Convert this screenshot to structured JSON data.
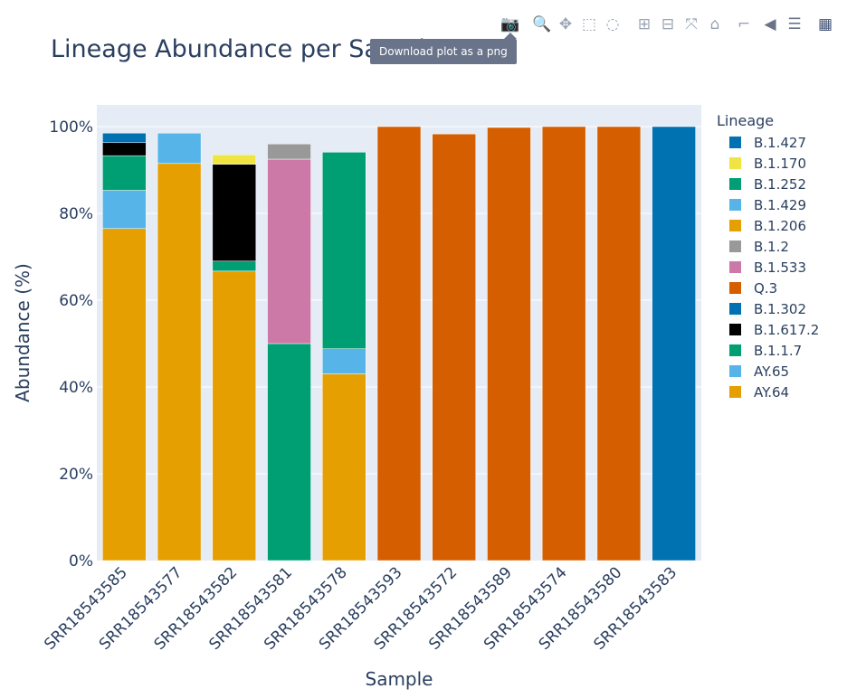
{
  "chart_data": {
    "type": "bar",
    "stacked": true,
    "title": "Lineage Abundance per Sample",
    "xlabel": "Sample",
    "ylabel": "Abundance (%)",
    "ylim": [
      0,
      105
    ],
    "yticks": [
      0,
      20,
      40,
      60,
      80,
      100
    ],
    "ytick_suffix": "%",
    "grid": true,
    "legend_title": "Lineage",
    "legend_position": "right",
    "categories": [
      "SRR18543585",
      "SRR18543577",
      "SRR18543582",
      "SRR18543581",
      "SRR18543578",
      "SRR18543593",
      "SRR18543572",
      "SRR18543589",
      "SRR18543574",
      "SRR18543580",
      "SRR18543583"
    ],
    "series": [
      {
        "name": "AY.64",
        "color": "#E69F00",
        "values": [
          76.5,
          91.5,
          66.7,
          0,
          43.0,
          0,
          0,
          0,
          0,
          0,
          0
        ]
      },
      {
        "name": "AY.65",
        "color": "#56B4E9",
        "values": [
          8.8,
          7.0,
          0,
          0,
          5.8,
          0,
          0,
          0,
          0,
          0,
          0
        ]
      },
      {
        "name": "B.1.1.7",
        "color": "#009E73",
        "values": [
          8.0,
          0,
          2.3,
          50.0,
          45.3,
          0,
          0,
          0,
          0,
          0,
          0
        ]
      },
      {
        "name": "B.1.617.2",
        "color": "#000000",
        "values": [
          3.0,
          0,
          22.3,
          0,
          0,
          0,
          0,
          0,
          0,
          0,
          0
        ]
      },
      {
        "name": "B.1.302",
        "color": "#0072B2",
        "values": [
          2.2,
          0,
          0,
          0,
          0,
          0,
          0,
          0,
          0,
          0,
          100.0
        ]
      },
      {
        "name": "Q.3",
        "color": "#D55E00",
        "values": [
          0,
          0,
          0,
          0,
          0,
          100.0,
          98.3,
          99.8,
          100.0,
          100.0,
          0
        ]
      },
      {
        "name": "B.1.533",
        "color": "#CC79A7",
        "values": [
          0,
          0,
          0,
          42.5,
          0,
          0,
          0,
          0,
          0,
          0,
          0
        ]
      },
      {
        "name": "B.1.2",
        "color": "#999999",
        "values": [
          0,
          0,
          0,
          3.5,
          0,
          0,
          0,
          0,
          0,
          0,
          0
        ]
      },
      {
        "name": "B.1.206",
        "color": "#E69F00",
        "values": [
          0,
          0,
          0,
          0,
          0,
          0,
          0,
          0,
          0,
          0,
          0
        ]
      },
      {
        "name": "B.1.429",
        "color": "#56B4E9",
        "values": [
          0,
          0,
          0,
          0,
          0,
          0,
          0,
          0,
          0,
          0,
          0
        ]
      },
      {
        "name": "B.1.252",
        "color": "#009E73",
        "values": [
          0,
          0,
          0,
          0,
          0,
          0,
          0,
          0,
          0,
          0,
          0
        ]
      },
      {
        "name": "B.1.170",
        "color": "#F0E442",
        "values": [
          0,
          0,
          2.2,
          0,
          0,
          0,
          0,
          0,
          0,
          0,
          0
        ]
      },
      {
        "name": "B.1.427",
        "color": "#0072B2",
        "values": [
          0,
          0,
          0,
          0,
          0,
          0,
          0,
          0,
          0,
          0,
          0
        ]
      }
    ]
  },
  "toolbar": {
    "tooltip": "Download plot as a png",
    "buttons": [
      {
        "name": "camera-icon",
        "glyph": "📷"
      },
      {
        "name": "zoom-icon",
        "glyph": "🔍"
      },
      {
        "name": "pan-icon",
        "glyph": "✥"
      },
      {
        "name": "box-select-icon",
        "glyph": "⬚"
      },
      {
        "name": "lasso-select-icon",
        "glyph": "◌"
      },
      {
        "name": "zoom-in-icon",
        "glyph": "⊞"
      },
      {
        "name": "zoom-out-icon",
        "glyph": "⊟"
      },
      {
        "name": "autoscale-icon",
        "glyph": "⤧"
      },
      {
        "name": "reset-axes-icon",
        "glyph": "⌂"
      },
      {
        "name": "spike-lines-icon",
        "glyph": "⌐"
      },
      {
        "name": "hover-closest-icon",
        "glyph": "◀"
      },
      {
        "name": "hover-compare-icon",
        "glyph": "☰"
      },
      {
        "name": "plotly-logo-icon",
        "glyph": "▦"
      }
    ]
  },
  "colors": {
    "plot_bg": "#E5ECF6",
    "grid": "#ffffff",
    "text": "#2a3f5f",
    "toolbar_icon": "#9aa3b3",
    "toolbar_active": "#6b7486",
    "logo": "#3f4f75"
  }
}
